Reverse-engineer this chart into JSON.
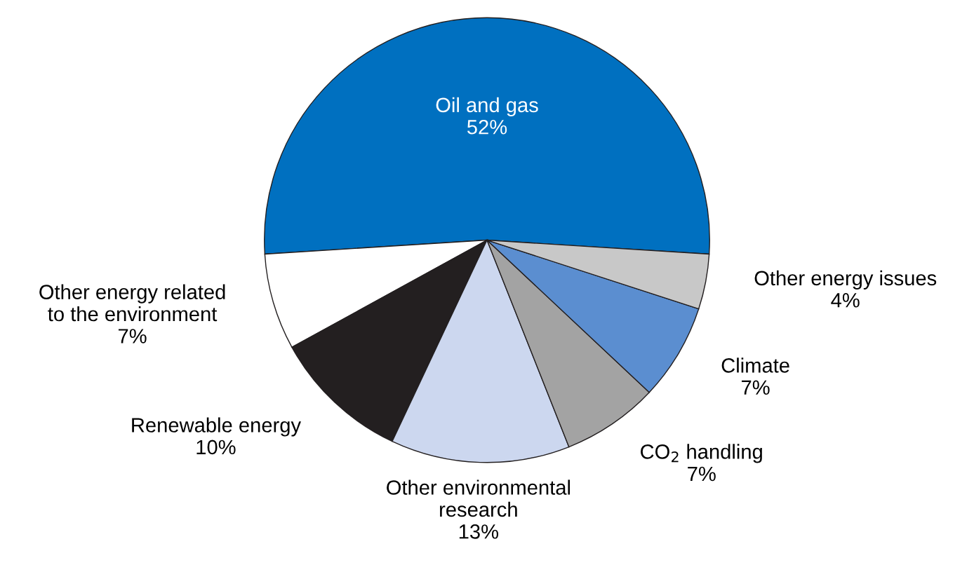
{
  "chart_data": {
    "type": "pie",
    "categories": [
      "Oil and gas",
      "Other energy related\nto the environment",
      "Renewable energy",
      "Other environmental\nresearch",
      "CO$_{2}$ handling",
      "Climate",
      "Other energy issues"
    ],
    "values": [
      52,
      7,
      10,
      13,
      7,
      7,
      4
    ],
    "value_labels": [
      "52%",
      "7%",
      "10%",
      "13%",
      "7%",
      "7%",
      "4%"
    ],
    "colors": [
      "#0070c0",
      "#ffffff",
      "#231f20",
      "#ccd7ef",
      "#a3a3a3",
      "#5b8ed0",
      "#c8c8c8"
    ]
  }
}
